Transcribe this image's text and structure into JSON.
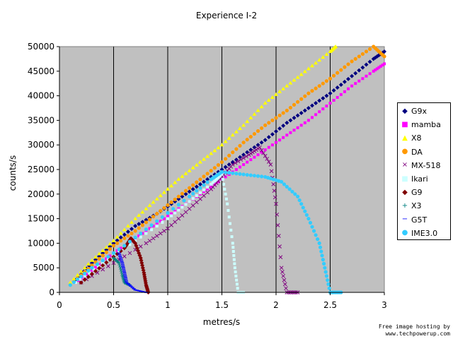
{
  "chart_data": {
    "type": "scatter",
    "title": "Experience I-2",
    "xlabel": "metres/s",
    "ylabel": "counts/s",
    "xlim": [
      0,
      3
    ],
    "ylim": [
      0,
      50000
    ],
    "x_ticks": [
      "0",
      "0.5",
      "1",
      "1.5",
      "2",
      "2.5",
      "3"
    ],
    "y_ticks": [
      "0",
      "5000",
      "10000",
      "15000",
      "20000",
      "25000",
      "30000",
      "35000",
      "40000",
      "45000",
      "50000"
    ],
    "grid": "vertical",
    "plot_background": "#c0c0c0",
    "legend_position": "right",
    "series": [
      {
        "name": "G9x",
        "color": "#000080",
        "marker": "◆",
        "points": [
          [
            0.15,
            2500
          ],
          [
            0.3,
            6000
          ],
          [
            0.5,
            10000
          ],
          [
            0.7,
            13500
          ],
          [
            0.9,
            16000
          ],
          [
            1.1,
            19000
          ],
          [
            1.3,
            22000
          ],
          [
            1.5,
            25000
          ],
          [
            1.7,
            28000
          ],
          [
            1.9,
            31000
          ],
          [
            2.1,
            34500
          ],
          [
            2.3,
            37500
          ],
          [
            2.5,
            40500
          ],
          [
            2.7,
            44000
          ],
          [
            2.9,
            47500
          ],
          [
            3.0,
            49000
          ]
        ]
      },
      {
        "name": "mamba",
        "color": "#ff00ff",
        "marker": "■",
        "points": [
          [
            0.15,
            2000
          ],
          [
            0.3,
            4500
          ],
          [
            0.5,
            8000
          ],
          [
            0.7,
            11000
          ],
          [
            0.9,
            14000
          ],
          [
            1.1,
            17000
          ],
          [
            1.3,
            20000
          ],
          [
            1.5,
            23000
          ],
          [
            1.7,
            26000
          ],
          [
            1.9,
            29000
          ],
          [
            2.1,
            32000
          ],
          [
            2.3,
            35000
          ],
          [
            2.5,
            38500
          ],
          [
            2.7,
            42000
          ],
          [
            2.9,
            45000
          ],
          [
            3.0,
            46500
          ]
        ]
      },
      {
        "name": "X8",
        "color": "#ffff00",
        "marker": "▲",
        "points": [
          [
            0.1,
            2000
          ],
          [
            0.3,
            6500
          ],
          [
            0.5,
            10500
          ],
          [
            0.7,
            15000
          ],
          [
            0.9,
            19000
          ],
          [
            1.1,
            23000
          ],
          [
            1.3,
            26500
          ],
          [
            1.5,
            30000
          ],
          [
            1.7,
            34000
          ],
          [
            1.9,
            38500
          ],
          [
            2.1,
            42000
          ],
          [
            2.3,
            45500
          ],
          [
            2.5,
            49000
          ],
          [
            2.55,
            50000
          ]
        ]
      },
      {
        "name": "DA",
        "color": "#ff9900",
        "marker": "●",
        "points": [
          [
            0.1,
            1500
          ],
          [
            0.3,
            5500
          ],
          [
            0.5,
            9500
          ],
          [
            0.7,
            12500
          ],
          [
            0.9,
            16000
          ],
          [
            1.1,
            19500
          ],
          [
            1.3,
            23000
          ],
          [
            1.5,
            26500
          ],
          [
            1.7,
            30500
          ],
          [
            1.9,
            34000
          ],
          [
            2.1,
            37000
          ],
          [
            2.3,
            40500
          ],
          [
            2.5,
            43500
          ],
          [
            2.7,
            47000
          ],
          [
            2.9,
            50000
          ],
          [
            3.0,
            48000
          ]
        ]
      },
      {
        "name": "MX-518",
        "color": "#800080",
        "marker": "×",
        "points": [
          [
            0.2,
            2000
          ],
          [
            0.5,
            6000
          ],
          [
            0.8,
            10000
          ],
          [
            1.0,
            13000
          ],
          [
            1.2,
            17000
          ],
          [
            1.4,
            21000
          ],
          [
            1.5,
            23500
          ],
          [
            1.6,
            26000
          ],
          [
            1.75,
            28000
          ],
          [
            1.85,
            29500
          ],
          [
            1.95,
            26000
          ],
          [
            2.0,
            18000
          ],
          [
            2.05,
            5000
          ],
          [
            2.1,
            0
          ],
          [
            2.2,
            0
          ]
        ]
      },
      {
        "name": "Ikari",
        "color": "#ccffff",
        "marker": "■",
        "points": [
          [
            0.15,
            2000
          ],
          [
            0.4,
            6000
          ],
          [
            0.7,
            10500
          ],
          [
            1.0,
            15000
          ],
          [
            1.2,
            18500
          ],
          [
            1.4,
            22000
          ],
          [
            1.5,
            24000
          ],
          [
            1.55,
            18000
          ],
          [
            1.6,
            10000
          ],
          [
            1.62,
            5000
          ],
          [
            1.65,
            0
          ],
          [
            1.7,
            0
          ]
        ]
      },
      {
        "name": "G9",
        "color": "#800000",
        "marker": "◆",
        "points": [
          [
            0.2,
            2000
          ],
          [
            0.4,
            5500
          ],
          [
            0.6,
            9000
          ],
          [
            0.66,
            11000
          ],
          [
            0.7,
            10000
          ],
          [
            0.75,
            7000
          ],
          [
            0.78,
            4000
          ],
          [
            0.8,
            1500
          ],
          [
            0.82,
            0
          ]
        ]
      },
      {
        "name": "X3",
        "color": "#008080",
        "marker": "+",
        "points": [
          [
            0.5,
            7000
          ],
          [
            0.55,
            6000
          ],
          [
            0.58,
            3500
          ],
          [
            0.6,
            2000
          ],
          [
            0.65,
            1500
          ]
        ]
      },
      {
        "name": "G5T",
        "color": "#0000ff",
        "marker": "−",
        "points": [
          [
            0.55,
            8000
          ],
          [
            0.58,
            6000
          ],
          [
            0.6,
            4000
          ],
          [
            0.62,
            2000
          ],
          [
            0.7,
            500
          ],
          [
            0.8,
            0
          ]
        ]
      },
      {
        "name": "IME3.0",
        "color": "#33ccff",
        "marker": "●",
        "points": [
          [
            0.1,
            1500
          ],
          [
            0.3,
            5000
          ],
          [
            0.6,
            9500
          ],
          [
            0.9,
            14500
          ],
          [
            1.2,
            19500
          ],
          [
            1.4,
            23000
          ],
          [
            1.5,
            24500
          ],
          [
            1.7,
            24000
          ],
          [
            1.9,
            23500
          ],
          [
            2.05,
            22500
          ],
          [
            2.2,
            19500
          ],
          [
            2.3,
            15000
          ],
          [
            2.4,
            10000
          ],
          [
            2.45,
            5000
          ],
          [
            2.5,
            0
          ],
          [
            2.6,
            0
          ]
        ]
      }
    ]
  },
  "watermark": {
    "line1": "Free image hosting by",
    "line2": "www.techpowerup.com"
  }
}
